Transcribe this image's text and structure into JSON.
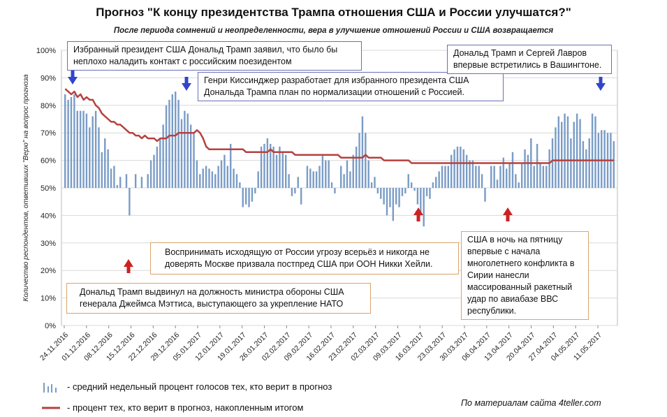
{
  "title": "Прогноз \"К концу президентства Трампа отношения США и России улучшатся?\"",
  "subtitle": "После периода сомнений и неопределенности, вера в улучшение отношений России и США возвращается",
  "colors": {
    "bars": "#7a9cc6",
    "line": "#b5413f",
    "arrow_blue": "#3344cc",
    "arrow_red": "#cc2222",
    "grid": "#d9d9d9"
  },
  "annotations": {
    "a1": "Избранный президент США Дональд Трамп заявил, что было бы неплохо наладить контакт с российским поезидентом",
    "a2": "Генри Киссинджер разработает для избранного президента США Дональда Трампа план по нормализации отношений с Россией.",
    "a3": "Дональд Трамп и Сергей Лавров впервые встретились в Вашингтоне.",
    "a4": "Воспринимать исходящую от России угрозу всерьёз и никогда не доверять Москве призвала постпред США при ООН Никки Хейли.",
    "a5": "США в ночь на пятницу впервые с начала многолетнего конфликта в Сирии нанесли массированный ракетный удар по авиабазе ВВС республики.",
    "a6": "Дональд Трамп выдвинул на должность министра обороны США генерала Джеймса Мэттиса, выступающего за укрепление НАТО"
  },
  "legend": {
    "bars": "- средний недельный процент голосов тех, кто верит в прогноз",
    "line": "- процент тех, кто верит в прогноз, накопленным итогом"
  },
  "source": "По материалам сайта 4teller.com",
  "chart_data": {
    "type": "bar+line",
    "ylabel": "Количество респондентов, ответивших \"Верю\" на вопрос прогноза",
    "ylim": [
      0,
      100
    ],
    "y_ticks": [
      "0%",
      "10%",
      "20%",
      "30%",
      "40%",
      "50%",
      "60%",
      "70%",
      "80%",
      "90%",
      "100%"
    ],
    "x_tick_labels": [
      "24.11.2016",
      "01.12.2016",
      "08.12.2016",
      "15.12.2016",
      "22.12.2016",
      "29.12.2016",
      "05.01.2017",
      "12.01.2017",
      "19.01.2017",
      "26.01.2017",
      "02.02.2017",
      "09.02.2017",
      "16.02.2017",
      "23.02.2017",
      "02.03.2017",
      "09.03.2017",
      "16.03.2017",
      "23.03.2017",
      "30.03.2017",
      "06.04.2017",
      "13.04.2017",
      "20.04.2017",
      "27.04.2017",
      "04.05.2017",
      "11.05.2017"
    ],
    "bar_baseline": 50,
    "series": [
      {
        "name": "средний недельный процент голосов тех, кто верит в прогноз",
        "type": "bar",
        "values": [
          84,
          82,
          83,
          84,
          78,
          78,
          78,
          77,
          72,
          76,
          78,
          72,
          63,
          68,
          64,
          57,
          58,
          51,
          54,
          50,
          55,
          40,
          50,
          55,
          50,
          54,
          50,
          55,
          60,
          62,
          65,
          68,
          73,
          80,
          82,
          84,
          85,
          82,
          75,
          78,
          77,
          73,
          70,
          60,
          55,
          57,
          58,
          57,
          56,
          55,
          58,
          60,
          62,
          58,
          66,
          57,
          55,
          52,
          43,
          44,
          43,
          45,
          48,
          56,
          65,
          66,
          68,
          66,
          65,
          62,
          65,
          63,
          62,
          55,
          47,
          48,
          54,
          44,
          50,
          58,
          57,
          56,
          56,
          58,
          62,
          60,
          60,
          52,
          48,
          50,
          58,
          55,
          60,
          56,
          62,
          65,
          70,
          76,
          70,
          60,
          52,
          54,
          48,
          46,
          44,
          40,
          43,
          38,
          44,
          43,
          47,
          48,
          55,
          52,
          49,
          44,
          40,
          36,
          47,
          46,
          52,
          54,
          56,
          58,
          58,
          58,
          62,
          64,
          65,
          65,
          64,
          62,
          60,
          60,
          58,
          58,
          55,
          45,
          50,
          58,
          58,
          53,
          58,
          61,
          57,
          59,
          63,
          55,
          52,
          59,
          64,
          62,
          68,
          58,
          66,
          59,
          58,
          58,
          64,
          68,
          72,
          76,
          74,
          77,
          76,
          68,
          74,
          77,
          75,
          67,
          64,
          68,
          77,
          76,
          70,
          71,
          71,
          70,
          70,
          67
        ],
        "line_values": [
          86,
          85,
          84,
          85,
          83,
          84,
          82,
          83,
          82,
          82,
          80,
          79,
          77,
          76,
          75,
          74,
          74,
          73,
          73,
          72,
          71,
          70,
          70,
          69,
          69,
          68,
          69,
          68,
          68,
          68,
          67,
          68,
          68,
          68,
          69,
          69,
          69,
          70,
          70,
          70,
          70,
          70,
          70,
          71,
          70,
          68,
          65,
          64,
          64,
          64,
          64,
          64,
          64,
          64,
          64,
          64,
          64,
          64,
          64,
          63,
          63,
          63,
          63,
          63,
          63,
          63,
          63,
          64,
          63,
          63,
          63,
          63,
          63,
          63,
          63,
          62,
          62,
          62,
          62,
          62,
          62,
          62,
          62,
          62,
          62,
          62,
          62,
          62,
          62,
          62,
          61,
          61,
          61,
          61,
          61,
          61,
          61,
          61,
          62,
          61,
          61,
          61,
          61,
          61,
          60,
          60,
          60,
          60,
          60,
          60,
          60,
          60,
          60,
          59,
          59,
          59,
          59,
          59,
          59,
          59,
          59,
          59,
          59,
          59,
          59,
          59,
          59,
          59,
          59,
          59,
          59,
          59,
          59,
          59,
          59,
          59,
          59,
          59,
          59,
          59,
          59,
          59,
          59,
          59,
          59,
          59,
          59,
          59,
          59,
          59,
          59,
          59,
          59,
          59,
          59,
          59,
          59,
          59,
          59,
          60,
          60,
          60,
          60,
          60,
          60,
          60,
          60,
          60,
          60,
          60,
          60,
          60,
          60,
          60,
          60,
          60,
          60,
          60,
          60,
          60
        ]
      },
      {
        "name": "процент тех, кто верит в прогноз, накопленным итогом",
        "type": "line"
      }
    ]
  }
}
